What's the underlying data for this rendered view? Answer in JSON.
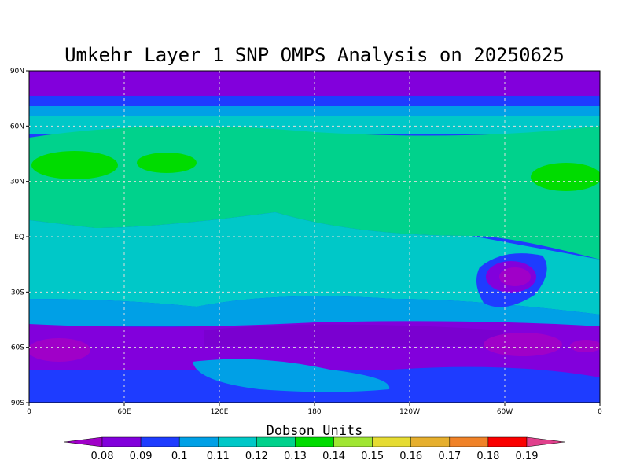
{
  "title": "Umkehr Layer 1 SNP OMPS Analysis on 20250625",
  "x_ticks": [
    "0",
    "60E",
    "120E",
    "180",
    "120W",
    "60W",
    "0"
  ],
  "y_ticks": [
    "90N",
    "60N",
    "30N",
    "EQ",
    "30S",
    "60S",
    "90S"
  ],
  "colorbar": {
    "label": "Dobson Units",
    "levels": [
      "0.08",
      "0.09",
      "0.1",
      "0.11",
      "0.12",
      "0.13",
      "0.14",
      "0.15",
      "0.16",
      "0.17",
      "0.18",
      "0.19"
    ],
    "colors": [
      "#a000c8",
      "#8200dc",
      "#1e3cff",
      "#00a0e6",
      "#00c8c8",
      "#00d28c",
      "#00dc00",
      "#a0e632",
      "#e6dc32",
      "#e6af2d",
      "#f08228",
      "#fa0000",
      "#e0408c"
    ]
  }
}
